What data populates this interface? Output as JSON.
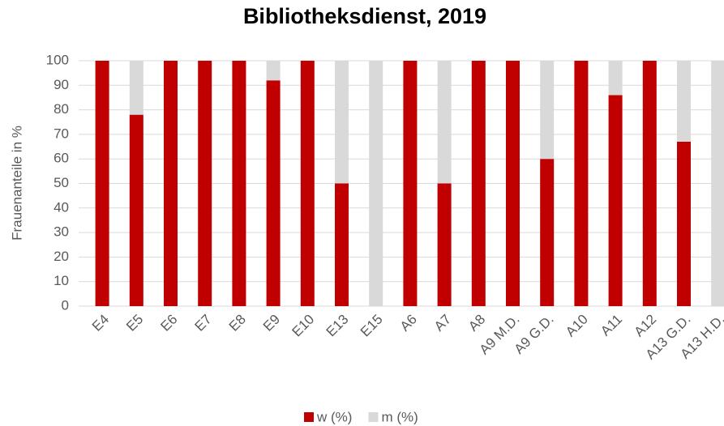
{
  "chart_data": {
    "type": "stacked_bar",
    "title": "Bibliotheksdienst, 2019",
    "ylabel": "Frauenanteile in %",
    "categories": [
      "E4",
      "E5",
      "E6",
      "E7",
      "E8",
      "E9",
      "E10",
      "E13",
      "E15",
      "A6",
      "A7",
      "A8",
      "A9 M.D.",
      "A9 G.D.",
      "A10",
      "A11",
      "A12",
      "A13 G.D.",
      "A13 H.D."
    ],
    "series": [
      {
        "name": "w (%)",
        "color": "#c00000",
        "values": [
          100,
          78,
          100,
          100,
          100,
          92,
          100,
          50,
          0,
          100,
          50,
          100,
          100,
          60,
          100,
          86,
          100,
          67,
          0
        ]
      },
      {
        "name": "m (%)",
        "color": "#d9d9d9",
        "values": [
          0,
          22,
          0,
          0,
          0,
          8,
          0,
          50,
          100,
          0,
          50,
          0,
          0,
          40,
          0,
          14,
          0,
          33,
          100
        ]
      }
    ],
    "ylim": [
      0,
      100
    ],
    "yticks": [
      0,
      10,
      20,
      30,
      40,
      50,
      60,
      70,
      80,
      90,
      100
    ],
    "grid": true,
    "legend": "bottom"
  }
}
